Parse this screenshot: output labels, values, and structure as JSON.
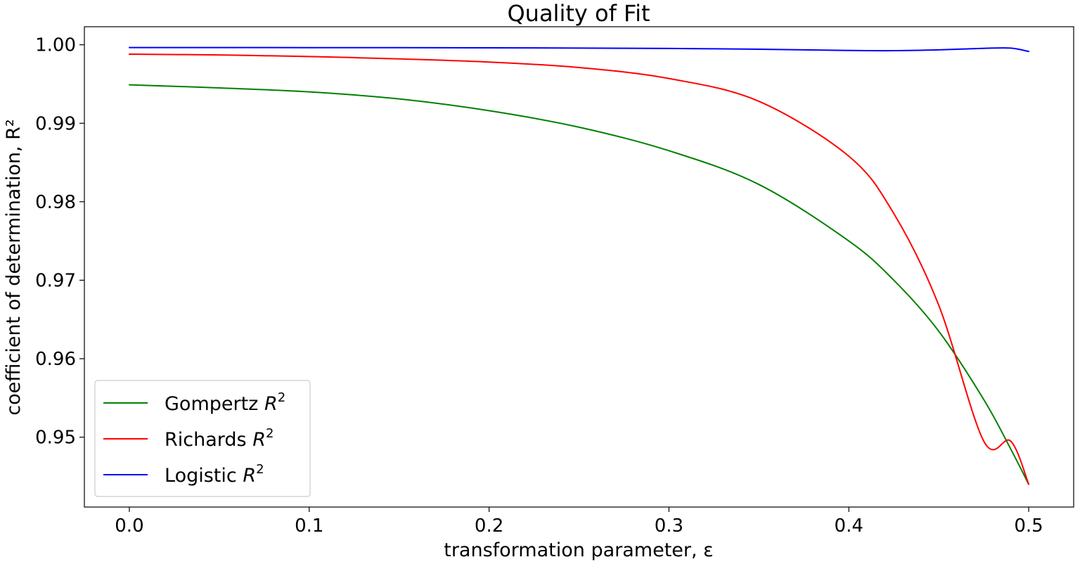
{
  "chart_data": {
    "type": "line",
    "title": "Quality of Fit",
    "xlabel": "transformation parameter, ε",
    "ylabel": "coefficient of determination, R²",
    "xlim": [
      -0.025,
      0.525
    ],
    "ylim": [
      0.9411,
      1.0023
    ],
    "xticks": [
      0.0,
      0.1,
      0.2,
      0.3,
      0.4,
      0.5
    ],
    "xtick_labels": [
      "0.0",
      "0.1",
      "0.2",
      "0.3",
      "0.4",
      "0.5"
    ],
    "yticks": [
      0.95,
      0.96,
      0.97,
      0.98,
      0.99,
      1.0
    ],
    "ytick_labels": [
      "0.95",
      "0.96",
      "0.97",
      "0.98",
      "0.99",
      "1.00"
    ],
    "grid": false,
    "legend_position": "lower-left",
    "x": [
      0.0,
      0.05,
      0.1,
      0.15,
      0.2,
      0.25,
      0.3,
      0.35,
      0.4,
      0.425,
      0.45,
      0.475,
      0.49,
      0.5
    ],
    "series": [
      {
        "name": "Gompertz",
        "color": "#008000",
        "values": [
          0.9949,
          0.9945,
          0.994,
          0.9931,
          0.9916,
          0.9895,
          0.9865,
          0.9822,
          0.975,
          0.97,
          0.9635,
          0.9548,
          0.9485,
          0.944
        ]
      },
      {
        "name": "Richards",
        "color": "#ff0000",
        "values": [
          0.9988,
          0.9987,
          0.9985,
          0.9982,
          0.9978,
          0.9971,
          0.9957,
          0.9928,
          0.9858,
          0.9785,
          0.9668,
          0.9495,
          0.9495,
          0.944
        ]
      },
      {
        "name": "Logistic",
        "color": "#0000ff",
        "values": [
          0.99965,
          0.99965,
          0.99964,
          0.99963,
          0.99961,
          0.99958,
          0.99953,
          0.99943,
          0.99928,
          0.99925,
          0.99935,
          0.99955,
          0.99958,
          0.99915
        ]
      }
    ]
  }
}
